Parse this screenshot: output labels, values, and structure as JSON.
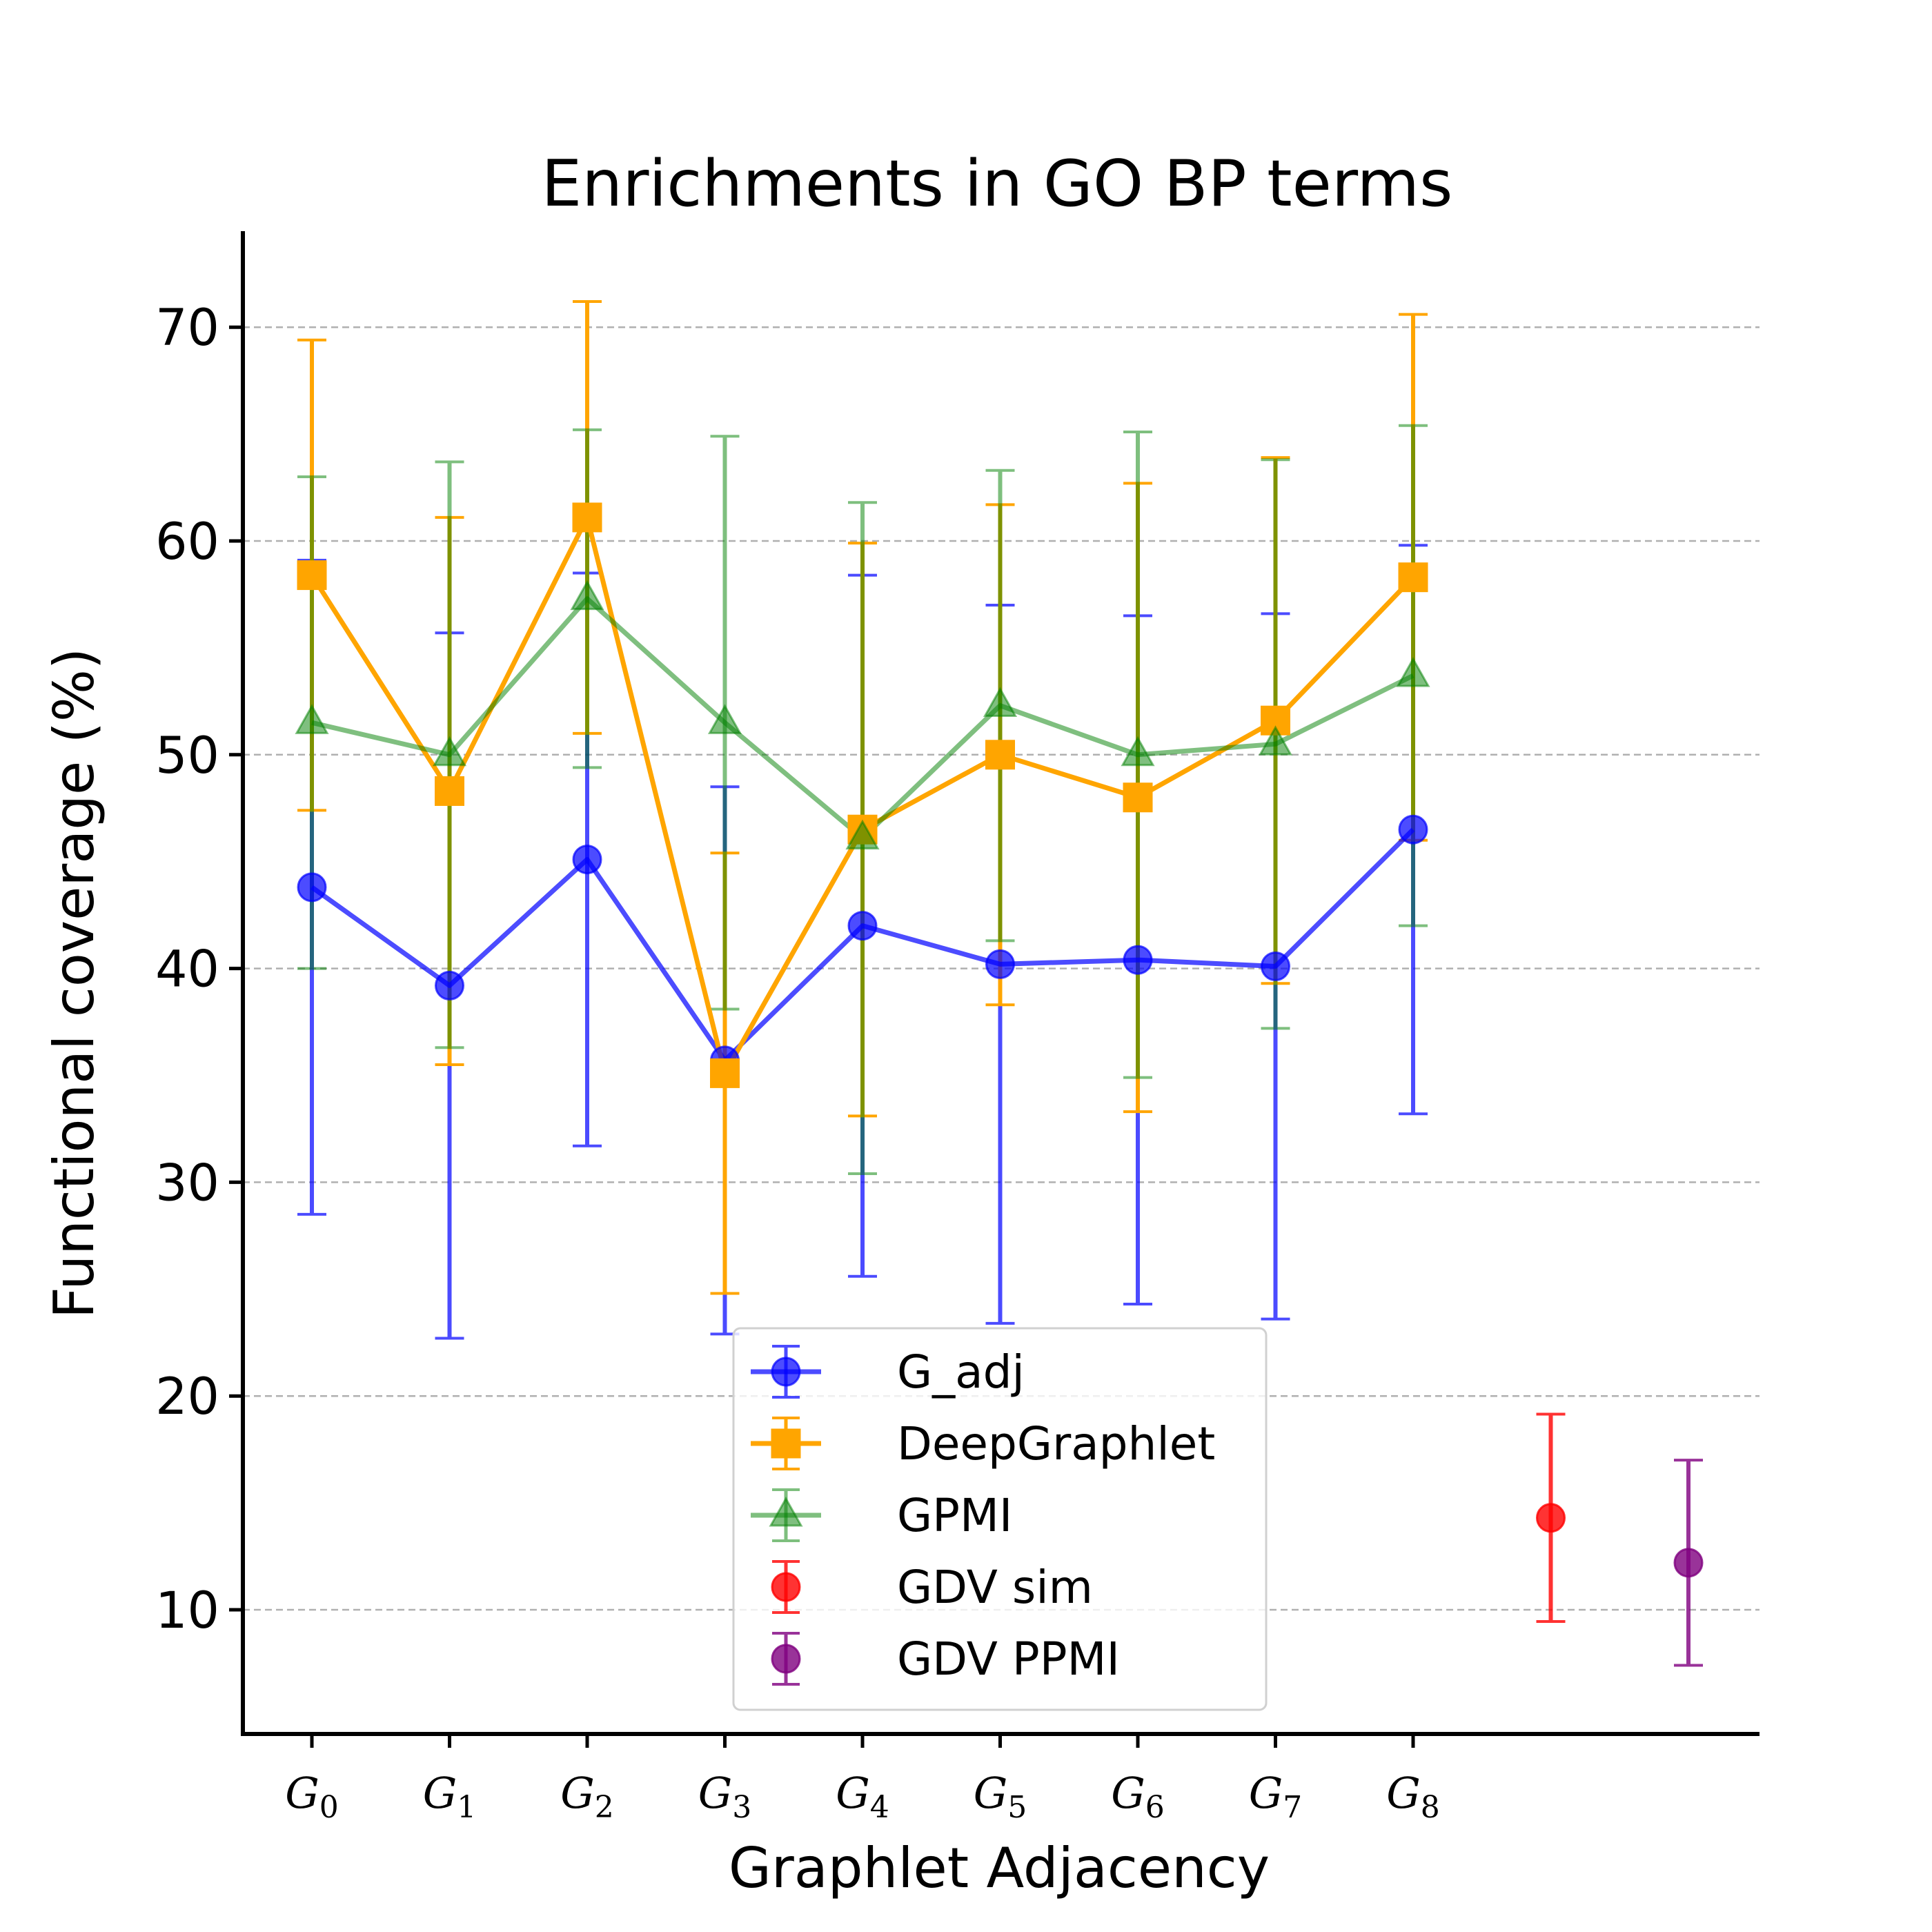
{
  "chart_data": {
    "type": "line",
    "title": "Enrichments in GO BP terms",
    "xlabel": "Graphlet Adjacency",
    "ylabel": "Functional coverage (%)",
    "ylim": [
      4.2,
      74.5
    ],
    "yticks": [
      10,
      20,
      30,
      40,
      50,
      60,
      70
    ],
    "grid": "horizontal dashed",
    "legend_position": "lower center",
    "categories": [
      {
        "base": "G",
        "sub": "0"
      },
      {
        "base": "G",
        "sub": "1"
      },
      {
        "base": "G",
        "sub": "2"
      },
      {
        "base": "G",
        "sub": "3"
      },
      {
        "base": "G",
        "sub": "4"
      },
      {
        "base": "G",
        "sub": "5"
      },
      {
        "base": "G",
        "sub": "6"
      },
      {
        "base": "G",
        "sub": "7"
      },
      {
        "base": "G",
        "sub": "8"
      }
    ],
    "series": [
      {
        "name": "G_adj",
        "marker": "circle",
        "color": "#0000ff",
        "line": true,
        "x": [
          0,
          1,
          2,
          3,
          4,
          5,
          6,
          7,
          8
        ],
        "values": [
          43.8,
          39.2,
          45.1,
          35.7,
          42.0,
          40.2,
          40.4,
          40.1,
          46.5
        ],
        "errors": [
          15.3,
          16.5,
          13.4,
          12.8,
          16.4,
          16.8,
          16.1,
          16.5,
          13.3
        ]
      },
      {
        "name": "DeepGraphlet",
        "marker": "square",
        "color": "#ffa500",
        "line": true,
        "x": [
          0,
          1,
          2,
          3,
          4,
          5,
          6,
          7,
          8
        ],
        "values": [
          58.4,
          48.3,
          61.1,
          35.1,
          46.5,
          50.0,
          48.0,
          51.6,
          58.3
        ],
        "errors": [
          11.0,
          12.8,
          10.1,
          10.3,
          13.4,
          11.7,
          14.7,
          12.3,
          12.3
        ]
      },
      {
        "name": "GPMI",
        "marker": "triangle",
        "color": "#008000",
        "line": true,
        "x": [
          0,
          1,
          2,
          3,
          4,
          5,
          6,
          7,
          8
        ],
        "values": [
          51.5,
          50.0,
          57.3,
          51.5,
          46.1,
          52.3,
          50.0,
          50.5,
          53.7
        ],
        "errors": [
          11.5,
          13.7,
          7.9,
          13.4,
          15.7,
          11.0,
          15.1,
          13.3,
          11.7
        ]
      },
      {
        "name": "GDV sim",
        "marker": "circle",
        "color": "#ff0000",
        "line": false,
        "x": [
          9
        ],
        "values": [
          14.3
        ],
        "errors": [
          4.85
        ]
      },
      {
        "name": "GDV PPMI",
        "marker": "circle",
        "color": "#800080",
        "line": false,
        "x": [
          10
        ],
        "values": [
          12.2
        ],
        "errors": [
          4.8
        ]
      }
    ]
  }
}
